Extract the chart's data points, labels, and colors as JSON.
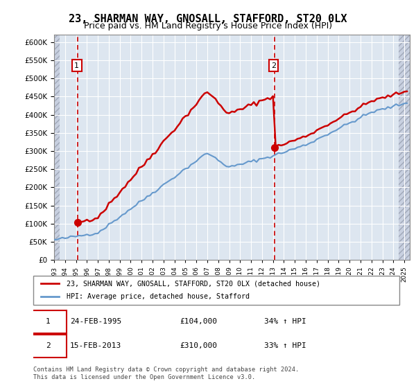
{
  "title": "23, SHARMAN WAY, GNOSALL, STAFFORD, ST20 0LX",
  "subtitle": "Price paid vs. HM Land Registry's House Price Index (HPI)",
  "title_fontsize": 11,
  "subtitle_fontsize": 9,
  "ylim": [
    0,
    620000
  ],
  "yticks": [
    0,
    50000,
    100000,
    150000,
    200000,
    250000,
    300000,
    350000,
    400000,
    450000,
    500000,
    550000,
    600000
  ],
  "sale1_date": 1995.15,
  "sale1_price": 104000,
  "sale2_date": 2013.12,
  "sale2_price": 310000,
  "legend_line1": "23, SHARMAN WAY, GNOSALL, STAFFORD, ST20 0LX (detached house)",
  "legend_line2": "HPI: Average price, detached house, Stafford",
  "table_row1": [
    "1",
    "24-FEB-1995",
    "£104,000",
    "34% ↑ HPI"
  ],
  "table_row2": [
    "2",
    "15-FEB-2013",
    "£310,000",
    "33% ↑ HPI"
  ],
  "footer": "Contains HM Land Registry data © Crown copyright and database right 2024.\nThis data is licensed under the Open Government Licence v3.0.",
  "hpi_color": "#6699cc",
  "price_color": "#cc0000",
  "bg_color": "#dde6f0",
  "grid_color": "#ffffff",
  "annotation_box_color": "#cc0000",
  "dashed_line_color": "#cc0000"
}
